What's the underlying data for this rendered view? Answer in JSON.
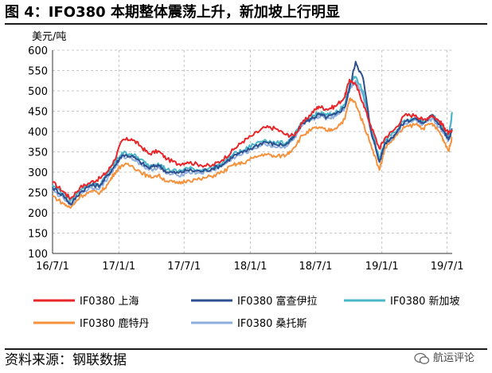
{
  "title": "图 4：IFO380 本期整体震荡上升，新加坡上行明显",
  "source": "资料来源：钢联数据",
  "watermark": "航运评论",
  "chart_data": {
    "type": "line",
    "ylabel": "美元/吨",
    "ylim": [
      100,
      600
    ],
    "yticks": [
      100,
      150,
      200,
      250,
      300,
      350,
      400,
      450,
      500,
      550,
      600
    ],
    "x_range": [
      "2016-07-01",
      "2019-07-15"
    ],
    "xtick_labels": [
      "16/7/1",
      "17/1/1",
      "17/7/1",
      "18/1/1",
      "18/7/1",
      "19/1/1",
      "19/7/1"
    ],
    "xtick_dates": [
      "2016-07-01",
      "2017-01-01",
      "2017-07-01",
      "2018-01-01",
      "2018-07-01",
      "2019-01-01",
      "2019-07-01"
    ],
    "grid": "dashed",
    "legend_position": "bottom",
    "series": [
      {
        "name": "IF0380 上海",
        "color": "#e8262a",
        "points": [
          [
            "2016-07-01",
            275
          ],
          [
            "2016-08-01",
            252
          ],
          [
            "2016-08-20",
            235
          ],
          [
            "2016-09-15",
            262
          ],
          [
            "2016-10-15",
            275
          ],
          [
            "2016-11-10",
            285
          ],
          [
            "2016-12-01",
            302
          ],
          [
            "2016-12-20",
            330
          ],
          [
            "2017-01-10",
            378
          ],
          [
            "2017-02-05",
            382
          ],
          [
            "2017-03-01",
            365
          ],
          [
            "2017-03-25",
            345
          ],
          [
            "2017-04-20",
            352
          ],
          [
            "2017-05-15",
            332
          ],
          [
            "2017-06-15",
            320
          ],
          [
            "2017-07-10",
            325
          ],
          [
            "2017-08-15",
            318
          ],
          [
            "2017-09-15",
            315
          ],
          [
            "2017-10-15",
            330
          ],
          [
            "2017-11-15",
            355
          ],
          [
            "2017-12-10",
            375
          ],
          [
            "2018-01-10",
            392
          ],
          [
            "2018-02-10",
            410
          ],
          [
            "2018-03-10",
            408
          ],
          [
            "2018-04-10",
            392
          ],
          [
            "2018-05-01",
            390
          ],
          [
            "2018-05-25",
            420
          ],
          [
            "2018-06-20",
            445
          ],
          [
            "2018-07-10",
            462
          ],
          [
            "2018-08-01",
            455
          ],
          [
            "2018-08-25",
            462
          ],
          [
            "2018-09-20",
            485
          ],
          [
            "2018-10-03",
            528
          ],
          [
            "2018-10-20",
            515
          ],
          [
            "2018-11-10",
            470
          ],
          [
            "2018-12-01",
            415
          ],
          [
            "2018-12-25",
            358
          ],
          [
            "2019-01-10",
            385
          ],
          [
            "2019-02-05",
            405
          ],
          [
            "2019-03-05",
            440
          ],
          [
            "2019-04-05",
            440
          ],
          [
            "2019-04-25",
            428
          ],
          [
            "2019-05-20",
            440
          ],
          [
            "2019-06-10",
            425
          ],
          [
            "2019-06-25",
            408
          ],
          [
            "2019-07-05",
            395
          ],
          [
            "2019-07-15",
            400
          ]
        ]
      },
      {
        "name": "IF0380 富查伊拉",
        "color": "#2e4f8f",
        "points": [
          [
            "2016-07-01",
            262
          ],
          [
            "2016-08-01",
            242
          ],
          [
            "2016-08-20",
            220
          ],
          [
            "2016-09-15",
            250
          ],
          [
            "2016-10-15",
            268
          ],
          [
            "2016-11-10",
            268
          ],
          [
            "2016-12-01",
            292
          ],
          [
            "2016-12-20",
            315
          ],
          [
            "2017-01-10",
            342
          ],
          [
            "2017-02-05",
            340
          ],
          [
            "2017-03-01",
            325
          ],
          [
            "2017-03-25",
            310
          ],
          [
            "2017-04-20",
            318
          ],
          [
            "2017-05-15",
            300
          ],
          [
            "2017-06-15",
            298
          ],
          [
            "2017-07-10",
            305
          ],
          [
            "2017-08-15",
            302
          ],
          [
            "2017-09-15",
            308
          ],
          [
            "2017-10-15",
            318
          ],
          [
            "2017-11-15",
            340
          ],
          [
            "2017-12-10",
            348
          ],
          [
            "2018-01-10",
            362
          ],
          [
            "2018-02-10",
            375
          ],
          [
            "2018-03-10",
            368
          ],
          [
            "2018-04-10",
            368
          ],
          [
            "2018-05-01",
            385
          ],
          [
            "2018-05-25",
            420
          ],
          [
            "2018-06-20",
            432
          ],
          [
            "2018-07-10",
            442
          ],
          [
            "2018-08-01",
            435
          ],
          [
            "2018-08-25",
            442
          ],
          [
            "2018-09-20",
            460
          ],
          [
            "2018-10-03",
            505
          ],
          [
            "2018-10-20",
            572
          ],
          [
            "2018-11-10",
            530
          ],
          [
            "2018-12-01",
            405
          ],
          [
            "2018-12-25",
            325
          ],
          [
            "2019-01-10",
            372
          ],
          [
            "2019-02-05",
            392
          ],
          [
            "2019-03-05",
            425
          ],
          [
            "2019-04-05",
            432
          ],
          [
            "2019-04-25",
            420
          ],
          [
            "2019-05-20",
            440
          ],
          [
            "2019-06-10",
            418
          ],
          [
            "2019-06-25",
            395
          ],
          [
            "2019-07-05",
            380
          ],
          [
            "2019-07-15",
            405
          ]
        ]
      },
      {
        "name": "IF0380 新加坡",
        "color": "#4ab7c9",
        "points": [
          [
            "2016-07-01",
            268
          ],
          [
            "2016-08-01",
            248
          ],
          [
            "2016-08-20",
            230
          ],
          [
            "2016-09-15",
            258
          ],
          [
            "2016-10-15",
            270
          ],
          [
            "2016-11-10",
            268
          ],
          [
            "2016-12-01",
            298
          ],
          [
            "2016-12-20",
            322
          ],
          [
            "2017-01-10",
            348
          ],
          [
            "2017-02-05",
            345
          ],
          [
            "2017-03-01",
            332
          ],
          [
            "2017-03-25",
            316
          ],
          [
            "2017-04-20",
            322
          ],
          [
            "2017-05-15",
            306
          ],
          [
            "2017-06-15",
            302
          ],
          [
            "2017-07-10",
            310
          ],
          [
            "2017-08-15",
            305
          ],
          [
            "2017-09-15",
            310
          ],
          [
            "2017-10-15",
            322
          ],
          [
            "2017-11-15",
            345
          ],
          [
            "2017-12-10",
            352
          ],
          [
            "2018-01-10",
            368
          ],
          [
            "2018-02-10",
            380
          ],
          [
            "2018-03-10",
            372
          ],
          [
            "2018-04-10",
            372
          ],
          [
            "2018-05-01",
            388
          ],
          [
            "2018-05-25",
            422
          ],
          [
            "2018-06-20",
            436
          ],
          [
            "2018-07-10",
            446
          ],
          [
            "2018-08-01",
            440
          ],
          [
            "2018-08-25",
            446
          ],
          [
            "2018-09-20",
            466
          ],
          [
            "2018-10-03",
            515
          ],
          [
            "2018-10-20",
            535
          ],
          [
            "2018-11-10",
            498
          ],
          [
            "2018-12-01",
            412
          ],
          [
            "2018-12-25",
            330
          ],
          [
            "2019-01-10",
            378
          ],
          [
            "2019-02-05",
            398
          ],
          [
            "2019-03-05",
            428
          ],
          [
            "2019-04-05",
            435
          ],
          [
            "2019-04-25",
            425
          ],
          [
            "2019-05-20",
            442
          ],
          [
            "2019-06-10",
            420
          ],
          [
            "2019-06-25",
            398
          ],
          [
            "2019-07-05",
            385
          ],
          [
            "2019-07-15",
            448
          ]
        ]
      },
      {
        "name": "IF0380 鹿特丹",
        "color": "#f5923e",
        "points": [
          [
            "2016-07-01",
            242
          ],
          [
            "2016-08-01",
            222
          ],
          [
            "2016-08-20",
            212
          ],
          [
            "2016-09-15",
            240
          ],
          [
            "2016-10-15",
            252
          ],
          [
            "2016-11-10",
            250
          ],
          [
            "2016-12-01",
            270
          ],
          [
            "2016-12-20",
            298
          ],
          [
            "2017-01-10",
            318
          ],
          [
            "2017-02-05",
            316
          ],
          [
            "2017-03-01",
            302
          ],
          [
            "2017-03-25",
            288
          ],
          [
            "2017-04-20",
            292
          ],
          [
            "2017-05-15",
            278
          ],
          [
            "2017-06-15",
            272
          ],
          [
            "2017-07-10",
            280
          ],
          [
            "2017-08-15",
            282
          ],
          [
            "2017-09-15",
            290
          ],
          [
            "2017-10-15",
            300
          ],
          [
            "2017-11-15",
            318
          ],
          [
            "2017-12-10",
            322
          ],
          [
            "2018-01-10",
            335
          ],
          [
            "2018-02-10",
            345
          ],
          [
            "2018-03-10",
            338
          ],
          [
            "2018-04-10",
            342
          ],
          [
            "2018-05-01",
            360
          ],
          [
            "2018-05-25",
            390
          ],
          [
            "2018-06-20",
            405
          ],
          [
            "2018-07-10",
            410
          ],
          [
            "2018-08-01",
            402
          ],
          [
            "2018-08-25",
            408
          ],
          [
            "2018-09-20",
            430
          ],
          [
            "2018-10-03",
            480
          ],
          [
            "2018-10-20",
            470
          ],
          [
            "2018-11-10",
            420
          ],
          [
            "2018-12-01",
            370
          ],
          [
            "2018-12-25",
            305
          ],
          [
            "2019-01-10",
            360
          ],
          [
            "2019-02-05",
            385
          ],
          [
            "2019-03-05",
            410
          ],
          [
            "2019-04-05",
            418
          ],
          [
            "2019-04-25",
            408
          ],
          [
            "2019-05-20",
            420
          ],
          [
            "2019-06-10",
            398
          ],
          [
            "2019-06-25",
            372
          ],
          [
            "2019-07-05",
            352
          ],
          [
            "2019-07-15",
            385
          ]
        ]
      },
      {
        "name": "IF0380 桑托斯",
        "color": "#8eaedc",
        "points": [
          [
            "2016-07-01",
            255
          ],
          [
            "2016-08-01",
            235
          ],
          [
            "2016-08-20",
            222
          ],
          [
            "2016-09-15",
            248
          ],
          [
            "2016-10-15",
            262
          ],
          [
            "2016-11-10",
            262
          ],
          [
            "2016-12-01",
            286
          ],
          [
            "2016-12-20",
            310
          ],
          [
            "2017-01-10",
            338
          ],
          [
            "2017-02-05",
            336
          ],
          [
            "2017-03-01",
            322
          ],
          [
            "2017-03-25",
            305
          ],
          [
            "2017-04-20",
            312
          ],
          [
            "2017-05-15",
            296
          ],
          [
            "2017-06-15",
            292
          ],
          [
            "2017-07-10",
            300
          ],
          [
            "2017-08-15",
            298
          ],
          [
            "2017-09-15",
            304
          ],
          [
            "2017-10-15",
            315
          ],
          [
            "2017-11-15",
            336
          ],
          [
            "2017-12-10",
            344
          ],
          [
            "2018-01-10",
            358
          ],
          [
            "2018-02-10",
            370
          ],
          [
            "2018-03-10",
            362
          ],
          [
            "2018-04-10",
            364
          ],
          [
            "2018-05-01",
            380
          ],
          [
            "2018-05-25",
            414
          ],
          [
            "2018-06-20",
            428
          ],
          [
            "2018-07-10",
            438
          ],
          [
            "2018-08-01",
            432
          ],
          [
            "2018-08-25",
            438
          ],
          [
            "2018-09-20",
            458
          ],
          [
            "2018-10-03",
            505
          ],
          [
            "2018-10-20",
            525
          ],
          [
            "2018-11-10",
            488
          ],
          [
            "2018-12-01",
            402
          ],
          [
            "2018-12-25",
            325
          ],
          [
            "2019-01-10",
            370
          ],
          [
            "2019-02-05",
            390
          ],
          [
            "2019-03-05",
            420
          ],
          [
            "2019-04-05",
            428
          ],
          [
            "2019-04-25",
            418
          ],
          [
            "2019-05-20",
            432
          ],
          [
            "2019-06-10",
            410
          ],
          [
            "2019-06-25",
            390
          ],
          [
            "2019-07-05",
            378
          ],
          [
            "2019-07-15",
            445
          ]
        ]
      }
    ]
  }
}
